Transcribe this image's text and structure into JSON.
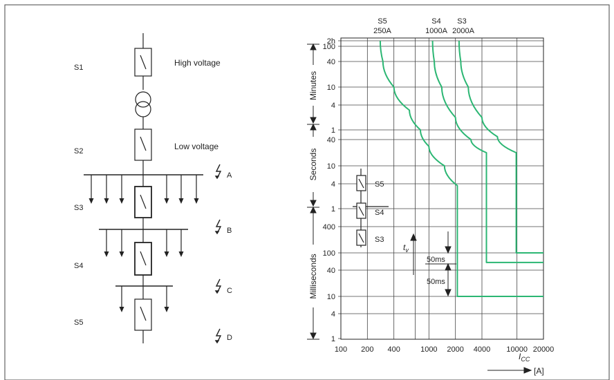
{
  "colors": {
    "curve": "#2bb673",
    "line": "#222222",
    "grid": "#444444",
    "background": "#ffffff"
  },
  "single_line": {
    "sections": [
      {
        "name": "S1",
        "text": "High voltage"
      },
      {
        "name": "S2",
        "text": "Low voltage"
      },
      {
        "name": "S3",
        "text": ""
      },
      {
        "name": "S4",
        "text": ""
      },
      {
        "name": "S5",
        "text": ""
      }
    ],
    "fault_points": [
      "A",
      "B",
      "C",
      "D"
    ],
    "icons": [
      "switch-icon",
      "transformer-icon",
      "fault-lightning-icon",
      "load-arrow-icon"
    ]
  },
  "chart": {
    "top_labels": [
      {
        "name": "S5",
        "rating": "250A"
      },
      {
        "name": "S4",
        "rating": "1000A"
      },
      {
        "name": "S3",
        "rating": "2000A"
      }
    ],
    "y_group_labels": [
      "Minutes",
      "Seconds",
      "Milliseconds"
    ],
    "y_tick_labels": [
      "2h",
      "100",
      "40",
      "10",
      "4",
      "1",
      "40",
      "10",
      "4",
      "1",
      "400",
      "100",
      "40",
      "10",
      "4",
      "1"
    ],
    "x_tick_labels": [
      "100",
      "200",
      "400",
      "1000",
      "2000",
      "4000",
      "10000",
      "20000"
    ],
    "x_axis_label": "Icc",
    "x_axis_unit": "[A]",
    "y_axis_symbol": "tv",
    "margin_labels": [
      "50ms",
      "50ms"
    ],
    "legend": [
      "S5",
      "S4",
      "S3"
    ]
  },
  "chart_data": {
    "type": "line",
    "title": "",
    "xlabel": "Icc [A]",
    "ylabel": "tv",
    "x_scale": "log",
    "y_scale": "log",
    "xlim": [
      100,
      20000
    ],
    "ylim_seconds": [
      0.001,
      7200
    ],
    "grid": true,
    "series": [
      {
        "name": "S5 250A",
        "points": [
          [
            280,
            7200
          ],
          [
            300,
            2400
          ],
          [
            400,
            600
          ],
          [
            600,
            180
          ],
          [
            800,
            60
          ],
          [
            1000,
            28
          ],
          [
            1500,
            10
          ],
          [
            2100,
            3.6
          ],
          [
            2100,
            0.01
          ],
          [
            2800,
            0.01
          ],
          [
            20000,
            0.01
          ]
        ]
      },
      {
        "name": "S4 1000A",
        "points": [
          [
            1100,
            7200
          ],
          [
            1150,
            2400
          ],
          [
            1400,
            600
          ],
          [
            2000,
            120
          ],
          [
            3000,
            40
          ],
          [
            4500,
            20
          ],
          [
            4500,
            0.06
          ],
          [
            6000,
            0.06
          ],
          [
            20000,
            0.06
          ]
        ]
      },
      {
        "name": "S3 2000A",
        "points": [
          [
            2200,
            7200
          ],
          [
            2300,
            2400
          ],
          [
            2800,
            600
          ],
          [
            4000,
            120
          ],
          [
            6000,
            45
          ],
          [
            9800,
            20
          ],
          [
            9800,
            0.1
          ],
          [
            12000,
            0.1
          ],
          [
            20000,
            0.1
          ]
        ]
      }
    ]
  }
}
